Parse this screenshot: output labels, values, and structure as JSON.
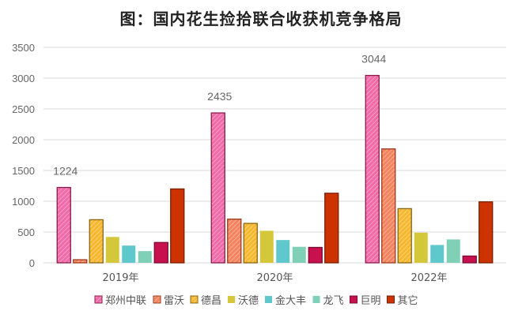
{
  "chart_data": {
    "type": "bar",
    "title": "图：国内花生捡拾联合收获机竞争格局",
    "xlabel": "",
    "ylabel": "",
    "ylim": [
      0,
      3500
    ],
    "yticks": [
      0,
      500,
      1000,
      1500,
      2000,
      2500,
      3000,
      3500
    ],
    "grid": true,
    "legend_position": "bottom",
    "categories": [
      "2019年",
      "2020年",
      "2022年"
    ],
    "series": [
      {
        "name": "郑州中联",
        "values": [
          1224,
          2435,
          3044
        ],
        "color": "#f06ba8",
        "border": "#8b1a4a",
        "hatched": true,
        "labeled": true
      },
      {
        "name": "雷沃",
        "values": [
          50,
          710,
          1850
        ],
        "color": "#f4845f",
        "border": "#9a3a1c",
        "hatched": true
      },
      {
        "name": "德昌",
        "values": [
          700,
          640,
          880
        ],
        "color": "#f5b82e",
        "border": "#8a6410",
        "hatched": true
      },
      {
        "name": "沃德",
        "values": [
          420,
          520,
          490
        ],
        "color": "#d4c83a"
      },
      {
        "name": "金大丰",
        "values": [
          280,
          370,
          290
        ],
        "color": "#5ec8cc"
      },
      {
        "name": "龙飞",
        "values": [
          190,
          260,
          380
        ],
        "color": "#7fd0b6"
      },
      {
        "name": "巨明",
        "values": [
          330,
          250,
          110
        ],
        "color": "#c8104f",
        "border": "#7a0a30"
      },
      {
        "name": "其它",
        "values": [
          1200,
          1130,
          990
        ],
        "color": "#cc3300",
        "border": "#7a1e00"
      }
    ]
  }
}
